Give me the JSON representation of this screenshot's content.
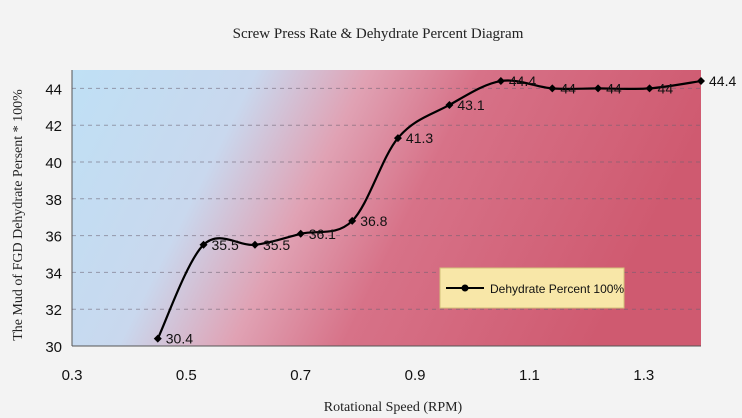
{
  "chart_data": {
    "type": "line",
    "title": "Screw Press Rate & Dehydrate Percent Diagram",
    "xlabel": "Rotational Speed (RPM)",
    "ylabel": "The Mud of FGD Dehydrate Persent * 100%",
    "xlim": [
      0.3,
      1.4
    ],
    "ylim": [
      30,
      45
    ],
    "xticks": [
      "0.3",
      "0.5",
      "0.7",
      "0.9",
      "1.1",
      "1.3"
    ],
    "yticks": [
      "30",
      "32",
      "34",
      "36",
      "38",
      "40",
      "42",
      "44"
    ],
    "grid": "horizontal dashed",
    "legend": {
      "position": "lower-right",
      "label": "Dehydrate Percent 100%"
    },
    "series": [
      {
        "name": "Dehydrate Percent 100%",
        "color": "#000000",
        "x": [
          0.45,
          0.53,
          0.62,
          0.7,
          0.79,
          0.87,
          0.96,
          1.05,
          1.14,
          1.22,
          1.31,
          1.4
        ],
        "y": [
          30.4,
          35.5,
          35.5,
          36.1,
          36.8,
          41.3,
          43.1,
          44.4,
          44,
          44,
          44,
          44.4
        ],
        "labels": [
          "30.4",
          "35.5",
          "35.5",
          "36.1",
          "36.8",
          "41.3",
          "43.1",
          "44.4",
          "44",
          "44",
          "44",
          "44.4"
        ]
      }
    ],
    "colors": {
      "background_left": "#bcdcf2",
      "background_right": "#d35a70"
    }
  }
}
